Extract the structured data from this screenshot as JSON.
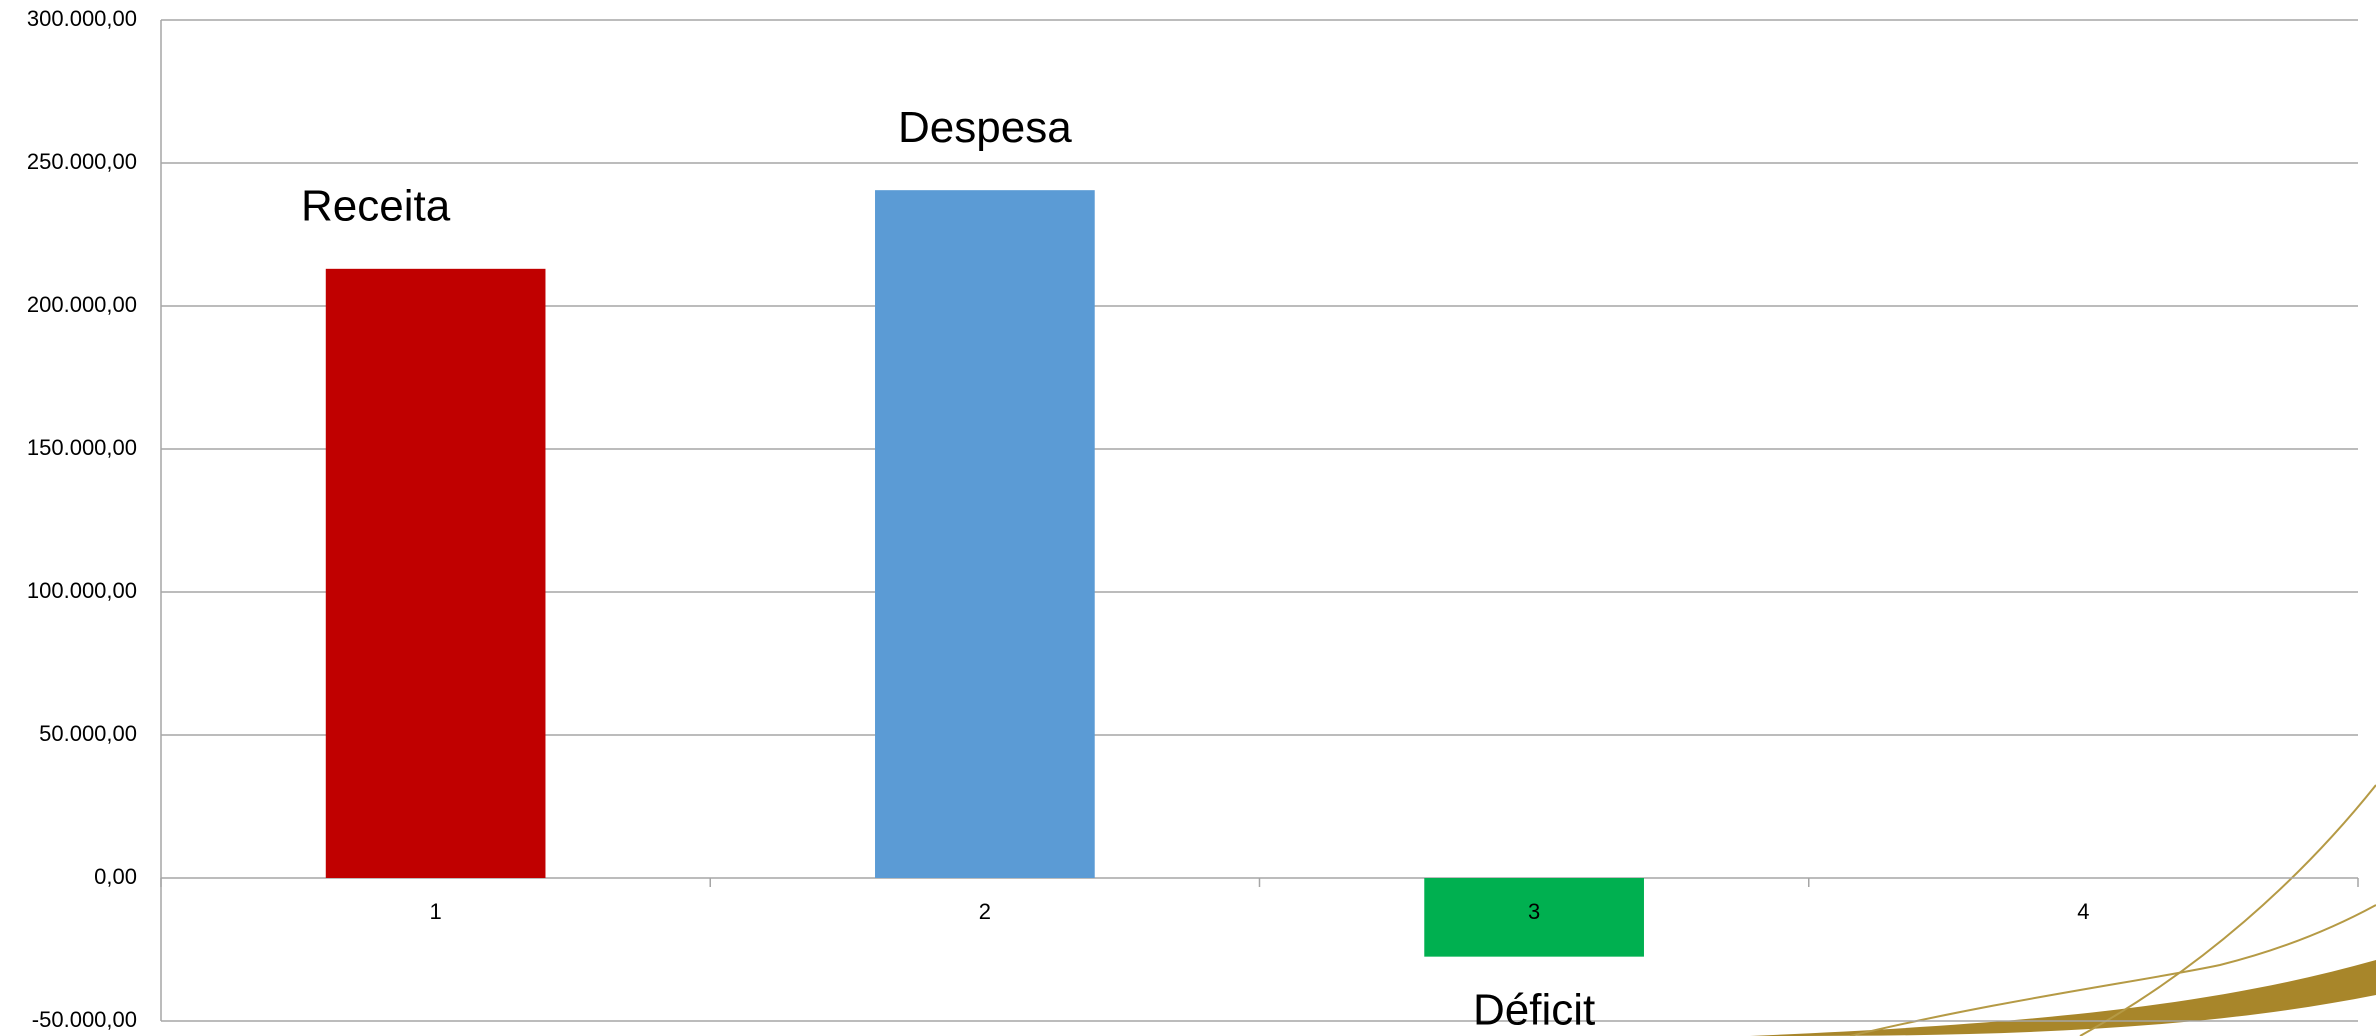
{
  "chart_data": {
    "type": "bar",
    "categories": [
      "1",
      "2",
      "3",
      "4"
    ],
    "values": [
      213000,
      240500,
      -27500,
      null
    ],
    "bar_labels": [
      "Receita",
      "Despesa",
      "Déficit",
      null
    ],
    "colors": [
      "#c00000",
      "#5b9bd5",
      "#00b050",
      null
    ],
    "ylim": [
      -50000,
      300000
    ],
    "yticks": [
      {
        "value": -50000,
        "label": "-50.000,00"
      },
      {
        "value": 0,
        "label": "0,00"
      },
      {
        "value": 50000,
        "label": "50.000,00"
      },
      {
        "value": 100000,
        "label": "100.000,00"
      },
      {
        "value": 150000,
        "label": "150.000,00"
      },
      {
        "value": 200000,
        "label": "200.000,00"
      },
      {
        "value": 250000,
        "label": "250.000,00"
      },
      {
        "value": 300000,
        "label": "300.000,00"
      }
    ],
    "grid": true
  }
}
